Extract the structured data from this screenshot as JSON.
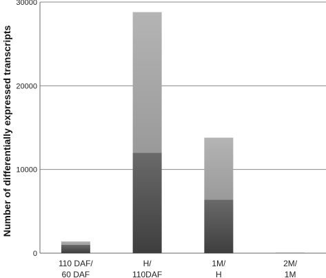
{
  "chart_data": {
    "type": "bar",
    "stacked": true,
    "categories": [
      [
        "110 DAF/",
        "60 DAF"
      ],
      [
        "H/",
        "110DAF"
      ],
      [
        "1M/",
        "H"
      ],
      [
        "2M/",
        "1M"
      ]
    ],
    "series": [
      {
        "values": [
          1000,
          12000,
          6400,
          0
        ],
        "color": "#555555"
      },
      {
        "values": [
          400,
          16800,
          7400,
          100
        ],
        "color": "#a8a8a8"
      }
    ],
    "ylabel": "Number of differentially expressed transcripts",
    "ylim": [
      0,
      30000
    ],
    "yticks": [
      0,
      10000,
      20000,
      30000
    ],
    "grid": true,
    "legend": "none"
  }
}
